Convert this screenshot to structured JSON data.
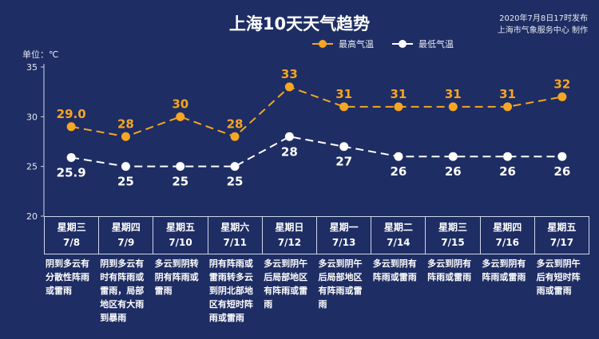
{
  "header": {
    "title": "上海10天天气趋势",
    "publish_time": "2020年7月8日17时发布",
    "publisher": "上海市气象服务中心 制作",
    "unit": "单位：℃"
  },
  "legend": {
    "high_label": "最高气温",
    "low_label": "最低气温"
  },
  "colors": {
    "background": "#1e2d63",
    "high": "#f5a623",
    "low": "#ffffff",
    "axis": "#cfd6ea"
  },
  "chart_data": {
    "type": "line",
    "title": "上海10天天气趋势",
    "ylabel": "单位：℃",
    "ylim": [
      20,
      35
    ],
    "yticks": [
      20,
      25,
      30,
      35
    ],
    "grid": false,
    "legend_position": "top-right",
    "categories": [
      "7/8",
      "7/9",
      "7/10",
      "7/11",
      "7/12",
      "7/13",
      "7/14",
      "7/15",
      "7/16",
      "7/17"
    ],
    "series": [
      {
        "name": "最高气温",
        "values": [
          29.0,
          28,
          30,
          28,
          33,
          31,
          31,
          31,
          31,
          32
        ],
        "labels": [
          "29.0",
          "28",
          "30",
          "28",
          "33",
          "31",
          "31",
          "31",
          "31",
          "32"
        ]
      },
      {
        "name": "最低气温",
        "values": [
          25.9,
          25,
          25,
          25,
          28,
          27,
          26,
          26,
          26,
          26
        ],
        "labels": [
          "25.9",
          "25",
          "25",
          "25",
          "28",
          "27",
          "26",
          "26",
          "26",
          "26"
        ]
      }
    ]
  },
  "days": [
    {
      "weekday": "星期三",
      "date": "7/8",
      "weather": "阴到多云有分散性阵雨或雷雨"
    },
    {
      "weekday": "星期四",
      "date": "7/9",
      "weather": "阴到多云有时有阵雨或雷雨，局部地区有大雨到暴雨"
    },
    {
      "weekday": "星期五",
      "date": "7/10",
      "weather": "多云到阴转阴有阵雨或雷雨"
    },
    {
      "weekday": "星期六",
      "date": "7/11",
      "weather": "阴有阵雨或雷雨转多云到阴北部地区有短时阵雨或雷雨"
    },
    {
      "weekday": "星期日",
      "date": "7/12",
      "weather": "多云到阴午后局部地区有阵雨或雷雨"
    },
    {
      "weekday": "星期一",
      "date": "7/13",
      "weather": "多云到阴午后局部地区有阵雨或雷雨"
    },
    {
      "weekday": "星期二",
      "date": "7/14",
      "weather": "多云到阴有阵雨或雷雨"
    },
    {
      "weekday": "星期三",
      "date": "7/15",
      "weather": "多云到阴有阵雨或雷雨"
    },
    {
      "weekday": "星期四",
      "date": "7/16",
      "weather": "多云到阴有阵雨或雷雨"
    },
    {
      "weekday": "星期五",
      "date": "7/17",
      "weather": "多云到阴午后有短时阵雨或雷雨"
    }
  ]
}
